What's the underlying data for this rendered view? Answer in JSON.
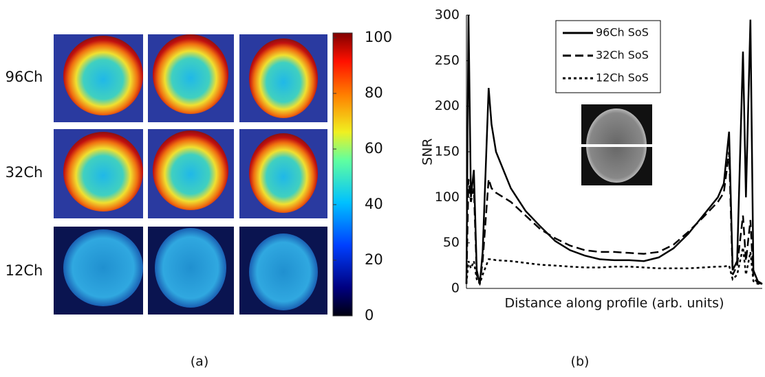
{
  "chart_data": [
    {
      "type": "image-grid",
      "row_labels": [
        "96Ch",
        "32Ch",
        "12Ch"
      ],
      "clim": [
        0,
        100
      ],
      "cticks": [
        0,
        20,
        40,
        60,
        80,
        100
      ],
      "caption": "(a)"
    },
    {
      "type": "line",
      "caption": "(b)",
      "y_label": "SNR",
      "x_label": "Distance along profile (arb. units)",
      "xlim": [
        0,
        100
      ],
      "ylim": [
        0,
        300
      ],
      "yticks": [
        0,
        50,
        100,
        150,
        200,
        250,
        300
      ],
      "x": [
        0,
        0.7,
        1.5,
        2.5,
        3.5,
        4.5,
        5.5,
        7.5,
        8.5,
        10,
        15,
        20,
        25,
        30,
        35,
        40,
        45,
        50,
        55,
        60,
        65,
        70,
        75,
        80,
        85,
        87,
        88.8,
        90,
        91.5,
        93.5,
        94.5,
        96,
        97,
        98.5,
        100
      ],
      "series": [
        {
          "name": "96Ch SoS",
          "color": "#000000",
          "dash": "solid",
          "values": [
            5,
            300,
            100,
            130,
            20,
            5,
            40,
            220,
            180,
            150,
            110,
            85,
            68,
            52,
            42,
            36,
            32,
            31,
            31,
            30,
            34,
            44,
            60,
            80,
            100,
            115,
            172,
            20,
            30,
            260,
            100,
            295,
            20,
            8,
            5
          ]
        },
        {
          "name": "32Ch SoS",
          "color": "#000000",
          "dash": "dashed",
          "values": [
            5,
            120,
            95,
            110,
            15,
            5,
            30,
            120,
            110,
            105,
            95,
            80,
            65,
            55,
            47,
            42,
            40,
            40,
            39,
            38,
            40,
            48,
            62,
            78,
            95,
            105,
            150,
            15,
            25,
            80,
            30,
            75,
            12,
            6,
            5
          ]
        },
        {
          "name": "12Ch SoS",
          "color": "#000000",
          "dash": "dotted",
          "values": [
            5,
            30,
            22,
            30,
            10,
            5,
            15,
            32,
            32,
            31,
            30,
            28,
            26,
            25,
            24,
            23,
            23,
            24,
            24,
            23,
            22,
            22,
            22,
            23,
            24,
            24,
            25,
            10,
            15,
            45,
            15,
            40,
            8,
            5,
            5
          ]
        }
      ]
    }
  ]
}
